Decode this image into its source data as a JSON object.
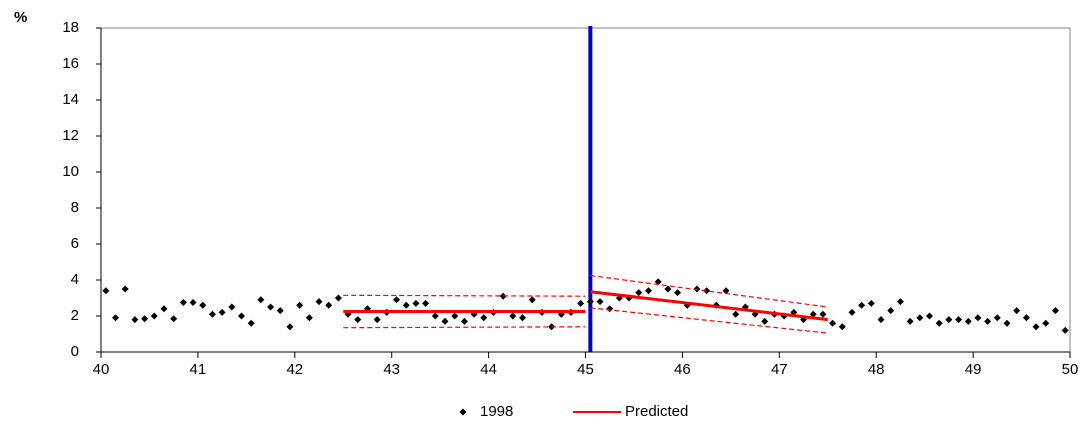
{
  "chart_data": {
    "type": "scatter-line",
    "y_label": "%",
    "xlim": [
      40,
      50
    ],
    "xticks": [
      40,
      41,
      42,
      43,
      44,
      45,
      46,
      47,
      48,
      49,
      50
    ],
    "ylim": [
      0,
      18
    ],
    "yticks": [
      0,
      2,
      4,
      6,
      8,
      10,
      12,
      14,
      16,
      18
    ],
    "vline": {
      "x": 45.05,
      "color": "#0000cc"
    },
    "series": [
      {
        "name": "1998",
        "kind": "points",
        "color": "#000000",
        "x": [
          40.05,
          40.15,
          40.25,
          40.35,
          40.45,
          40.55,
          40.65,
          40.75,
          40.85,
          40.95,
          41.05,
          41.15,
          41.25,
          41.35,
          41.45,
          41.55,
          41.65,
          41.75,
          41.85,
          41.95,
          42.05,
          42.15,
          42.25,
          42.35,
          42.45,
          42.55,
          42.65,
          42.75,
          42.85,
          42.95,
          43.05,
          43.15,
          43.25,
          43.35,
          43.45,
          43.55,
          43.65,
          43.75,
          43.85,
          43.95,
          44.05,
          44.15,
          44.25,
          44.35,
          44.45,
          44.55,
          44.65,
          44.75,
          44.85,
          44.95,
          45.05,
          45.15,
          45.25,
          45.35,
          45.45,
          45.55,
          45.65,
          45.75,
          45.85,
          45.95,
          46.05,
          46.15,
          46.25,
          46.35,
          46.45,
          46.55,
          46.65,
          46.75,
          46.85,
          46.95,
          47.05,
          47.15,
          47.25,
          47.35,
          47.45,
          47.55,
          47.65,
          47.75,
          47.85,
          47.95,
          48.05,
          48.15,
          48.25,
          48.35,
          48.45,
          48.55,
          48.65,
          48.75,
          48.85,
          48.95,
          49.05,
          49.15,
          49.25,
          49.35,
          49.45,
          49.55,
          49.65,
          49.75,
          49.85,
          49.95
        ],
        "values": [
          3.4,
          1.9,
          3.5,
          1.8,
          1.85,
          2.0,
          2.4,
          1.85,
          2.75,
          2.75,
          2.6,
          2.1,
          2.2,
          2.5,
          2.0,
          1.6,
          2.9,
          2.5,
          2.3,
          1.4,
          2.6,
          1.9,
          2.8,
          2.6,
          3.0,
          2.1,
          1.8,
          2.4,
          1.8,
          2.2,
          2.9,
          2.6,
          2.7,
          2.7,
          2.0,
          1.7,
          2.0,
          1.7,
          2.1,
          1.9,
          2.2,
          3.1,
          2.0,
          1.9,
          2.9,
          2.2,
          1.4,
          2.1,
          2.2,
          2.7,
          2.8,
          2.8,
          2.4,
          3.0,
          3.0,
          3.3,
          3.4,
          3.9,
          3.5,
          3.3,
          2.6,
          3.5,
          3.4,
          2.6,
          3.4,
          2.1,
          2.5,
          2.1,
          1.7,
          2.1,
          2.0,
          2.2,
          1.8,
          2.1,
          2.1,
          1.6,
          1.4,
          2.2,
          2.6,
          2.7,
          1.8,
          2.3,
          2.8,
          1.7,
          1.9,
          2.0,
          1.6,
          1.8,
          1.8,
          1.7,
          1.9,
          1.7,
          1.9,
          1.6,
          2.3,
          1.9,
          1.4,
          1.6,
          2.3,
          1.2
        ]
      },
      {
        "name": "Predicted",
        "kind": "line",
        "color": "#ff0000",
        "x": [
          42.5,
          45,
          null,
          45.05,
          47.5
        ],
        "values": [
          2.25,
          2.25,
          null,
          3.35,
          1.8
        ]
      },
      {
        "kind": "dashed",
        "color": "#ff0000",
        "x": [
          42.5,
          45,
          null,
          45.05,
          47.5
        ],
        "values": [
          3.15,
          3.1,
          null,
          4.25,
          2.5
        ]
      },
      {
        "kind": "dashed",
        "color": "#ff0000",
        "x": [
          42.5,
          45,
          null,
          45.05,
          47.5
        ],
        "values": [
          1.35,
          1.4,
          null,
          2.45,
          1.05
        ]
      }
    ]
  }
}
